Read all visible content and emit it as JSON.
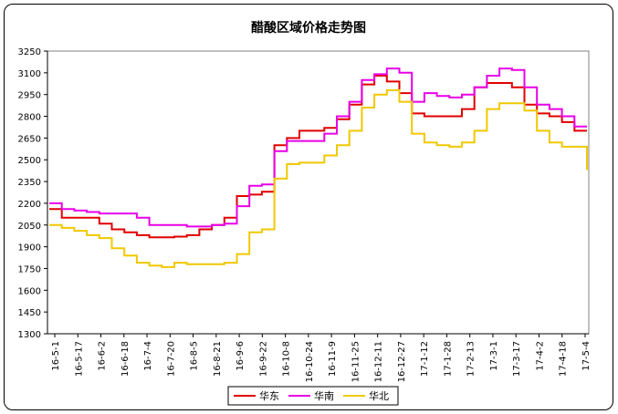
{
  "chart_data": {
    "type": "line",
    "title": "醋酸区域价格走势图",
    "ylim": [
      1300,
      3250
    ],
    "yticks": [
      3250,
      3100,
      2950,
      2800,
      2650,
      2500,
      2350,
      2200,
      2050,
      1900,
      1750,
      1600,
      1450,
      1300
    ],
    "xticks": [
      "16-5-1",
      "16-5-17",
      "16-6-2",
      "16-6-18",
      "16-7-4",
      "16-7-20",
      "16-8-5",
      "16-8-21",
      "16-9-6",
      "16-9-22",
      "16-10-8",
      "16-10-24",
      "16-11-9",
      "16-11-25",
      "16-12-11",
      "16-12-27",
      "17-1-12",
      "17-1-28",
      "17-2-13",
      "17-3-1",
      "17-3-17",
      "17-4-2",
      "17-4-18",
      "17-5-4"
    ],
    "legend_position": "bottom",
    "grid": false,
    "colors": {
      "华东": "#e00000",
      "华南": "#e800e8",
      "华北": "#f0c800"
    },
    "series": [
      {
        "name": "华东",
        "values": [
          2160,
          2100,
          2100,
          2100,
          2060,
          2020,
          2000,
          1980,
          1965,
          1965,
          1970,
          1980,
          2020,
          2050,
          2100,
          2250,
          2260,
          2280,
          2600,
          2650,
          2700,
          2700,
          2720,
          2780,
          2880,
          3020,
          3080,
          3040,
          2960,
          2820,
          2800,
          2800,
          2800,
          2850,
          3000,
          3030,
          3030,
          3000,
          2880,
          2820,
          2800,
          2760,
          2700,
          2700
        ]
      },
      {
        "name": "华南",
        "values": [
          2200,
          2160,
          2150,
          2140,
          2130,
          2130,
          2130,
          2100,
          2050,
          2050,
          2050,
          2040,
          2040,
          2050,
          2060,
          2180,
          2320,
          2330,
          2560,
          2630,
          2630,
          2630,
          2680,
          2800,
          2900,
          3050,
          3090,
          3130,
          3100,
          2900,
          2960,
          2940,
          2930,
          2950,
          3000,
          3080,
          3130,
          3120,
          3000,
          2880,
          2850,
          2800,
          2730,
          2730
        ]
      },
      {
        "name": "华北",
        "values": [
          2050,
          2030,
          2010,
          1980,
          1960,
          1890,
          1840,
          1790,
          1770,
          1760,
          1790,
          1780,
          1780,
          1780,
          1790,
          1850,
          2000,
          2020,
          2370,
          2470,
          2480,
          2480,
          2530,
          2600,
          2700,
          2860,
          2950,
          2980,
          2900,
          2680,
          2620,
          2600,
          2590,
          2620,
          2700,
          2850,
          2890,
          2890,
          2840,
          2700,
          2620,
          2590,
          2590,
          2430
        ]
      }
    ]
  }
}
